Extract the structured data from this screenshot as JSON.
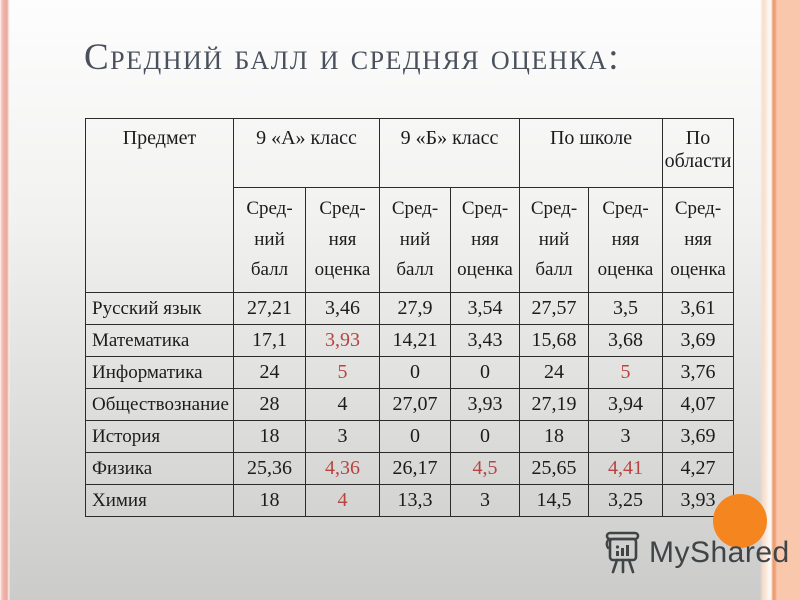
{
  "slide": {
    "title": "Средний балл и средняя оценка:",
    "background_top": "#fdfdfd",
    "background_bottom": "#cbcbca",
    "left_stripe_color": "#efb1a8",
    "right_band_color": "#f9c7ab",
    "title_color": "#4a515c",
    "accent_red": "#b9443f",
    "accent_orange": "#f5861f"
  },
  "table": {
    "col_groups": [
      {
        "label": "Предмет"
      },
      {
        "label": "9 «А» класс"
      },
      {
        "label": "9 «Б» класс"
      },
      {
        "label": "По школе"
      },
      {
        "label": "По области"
      }
    ],
    "sub_headers": {
      "ball": "Сред-\nний\nбалл",
      "ocenka": "Сред-\nняя\nоценка"
    },
    "rows": [
      {
        "subject": "Русский язык",
        "cells": [
          {
            "v": "27,21"
          },
          {
            "v": "3,46"
          },
          {
            "v": "27,9"
          },
          {
            "v": "3,54"
          },
          {
            "v": "27,57"
          },
          {
            "v": "3,5"
          },
          {
            "v": "3,61"
          }
        ]
      },
      {
        "subject": "Математика",
        "cells": [
          {
            "v": "17,1"
          },
          {
            "v": "3,93",
            "red": true
          },
          {
            "v": "14,21"
          },
          {
            "v": "3,43"
          },
          {
            "v": "15,68"
          },
          {
            "v": "3,68"
          },
          {
            "v": "3,69"
          }
        ]
      },
      {
        "subject": "Информатика",
        "cells": [
          {
            "v": "24"
          },
          {
            "v": "5",
            "red": true
          },
          {
            "v": "0"
          },
          {
            "v": "0"
          },
          {
            "v": "24"
          },
          {
            "v": "5",
            "red": true
          },
          {
            "v": "3,76"
          }
        ]
      },
      {
        "subject": "Обществознание",
        "cells": [
          {
            "v": "28"
          },
          {
            "v": "4"
          },
          {
            "v": "27,07"
          },
          {
            "v": "3,93"
          },
          {
            "v": "27,19"
          },
          {
            "v": "3,94"
          },
          {
            "v": "4,07"
          }
        ]
      },
      {
        "subject": "История",
        "cells": [
          {
            "v": "18"
          },
          {
            "v": "3"
          },
          {
            "v": "0"
          },
          {
            "v": "0"
          },
          {
            "v": "18"
          },
          {
            "v": "3"
          },
          {
            "v": "3,69"
          }
        ]
      },
      {
        "subject": "Физика",
        "cells": [
          {
            "v": "25,36"
          },
          {
            "v": "4,36",
            "red": true
          },
          {
            "v": "26,17"
          },
          {
            "v": "4,5",
            "red": true
          },
          {
            "v": "25,65"
          },
          {
            "v": "4,41",
            "red": true
          },
          {
            "v": "4,27"
          }
        ]
      },
      {
        "subject": "Химия",
        "cells": [
          {
            "v": "18"
          },
          {
            "v": "4",
            "red": true
          },
          {
            "v": "13,3"
          },
          {
            "v": "3"
          },
          {
            "v": "14,5"
          },
          {
            "v": "3,25"
          },
          {
            "v": "3,93"
          }
        ]
      }
    ]
  },
  "watermark": {
    "brand": "MyShared",
    "icon": "flipchart-icon",
    "color": "#3f4547"
  }
}
